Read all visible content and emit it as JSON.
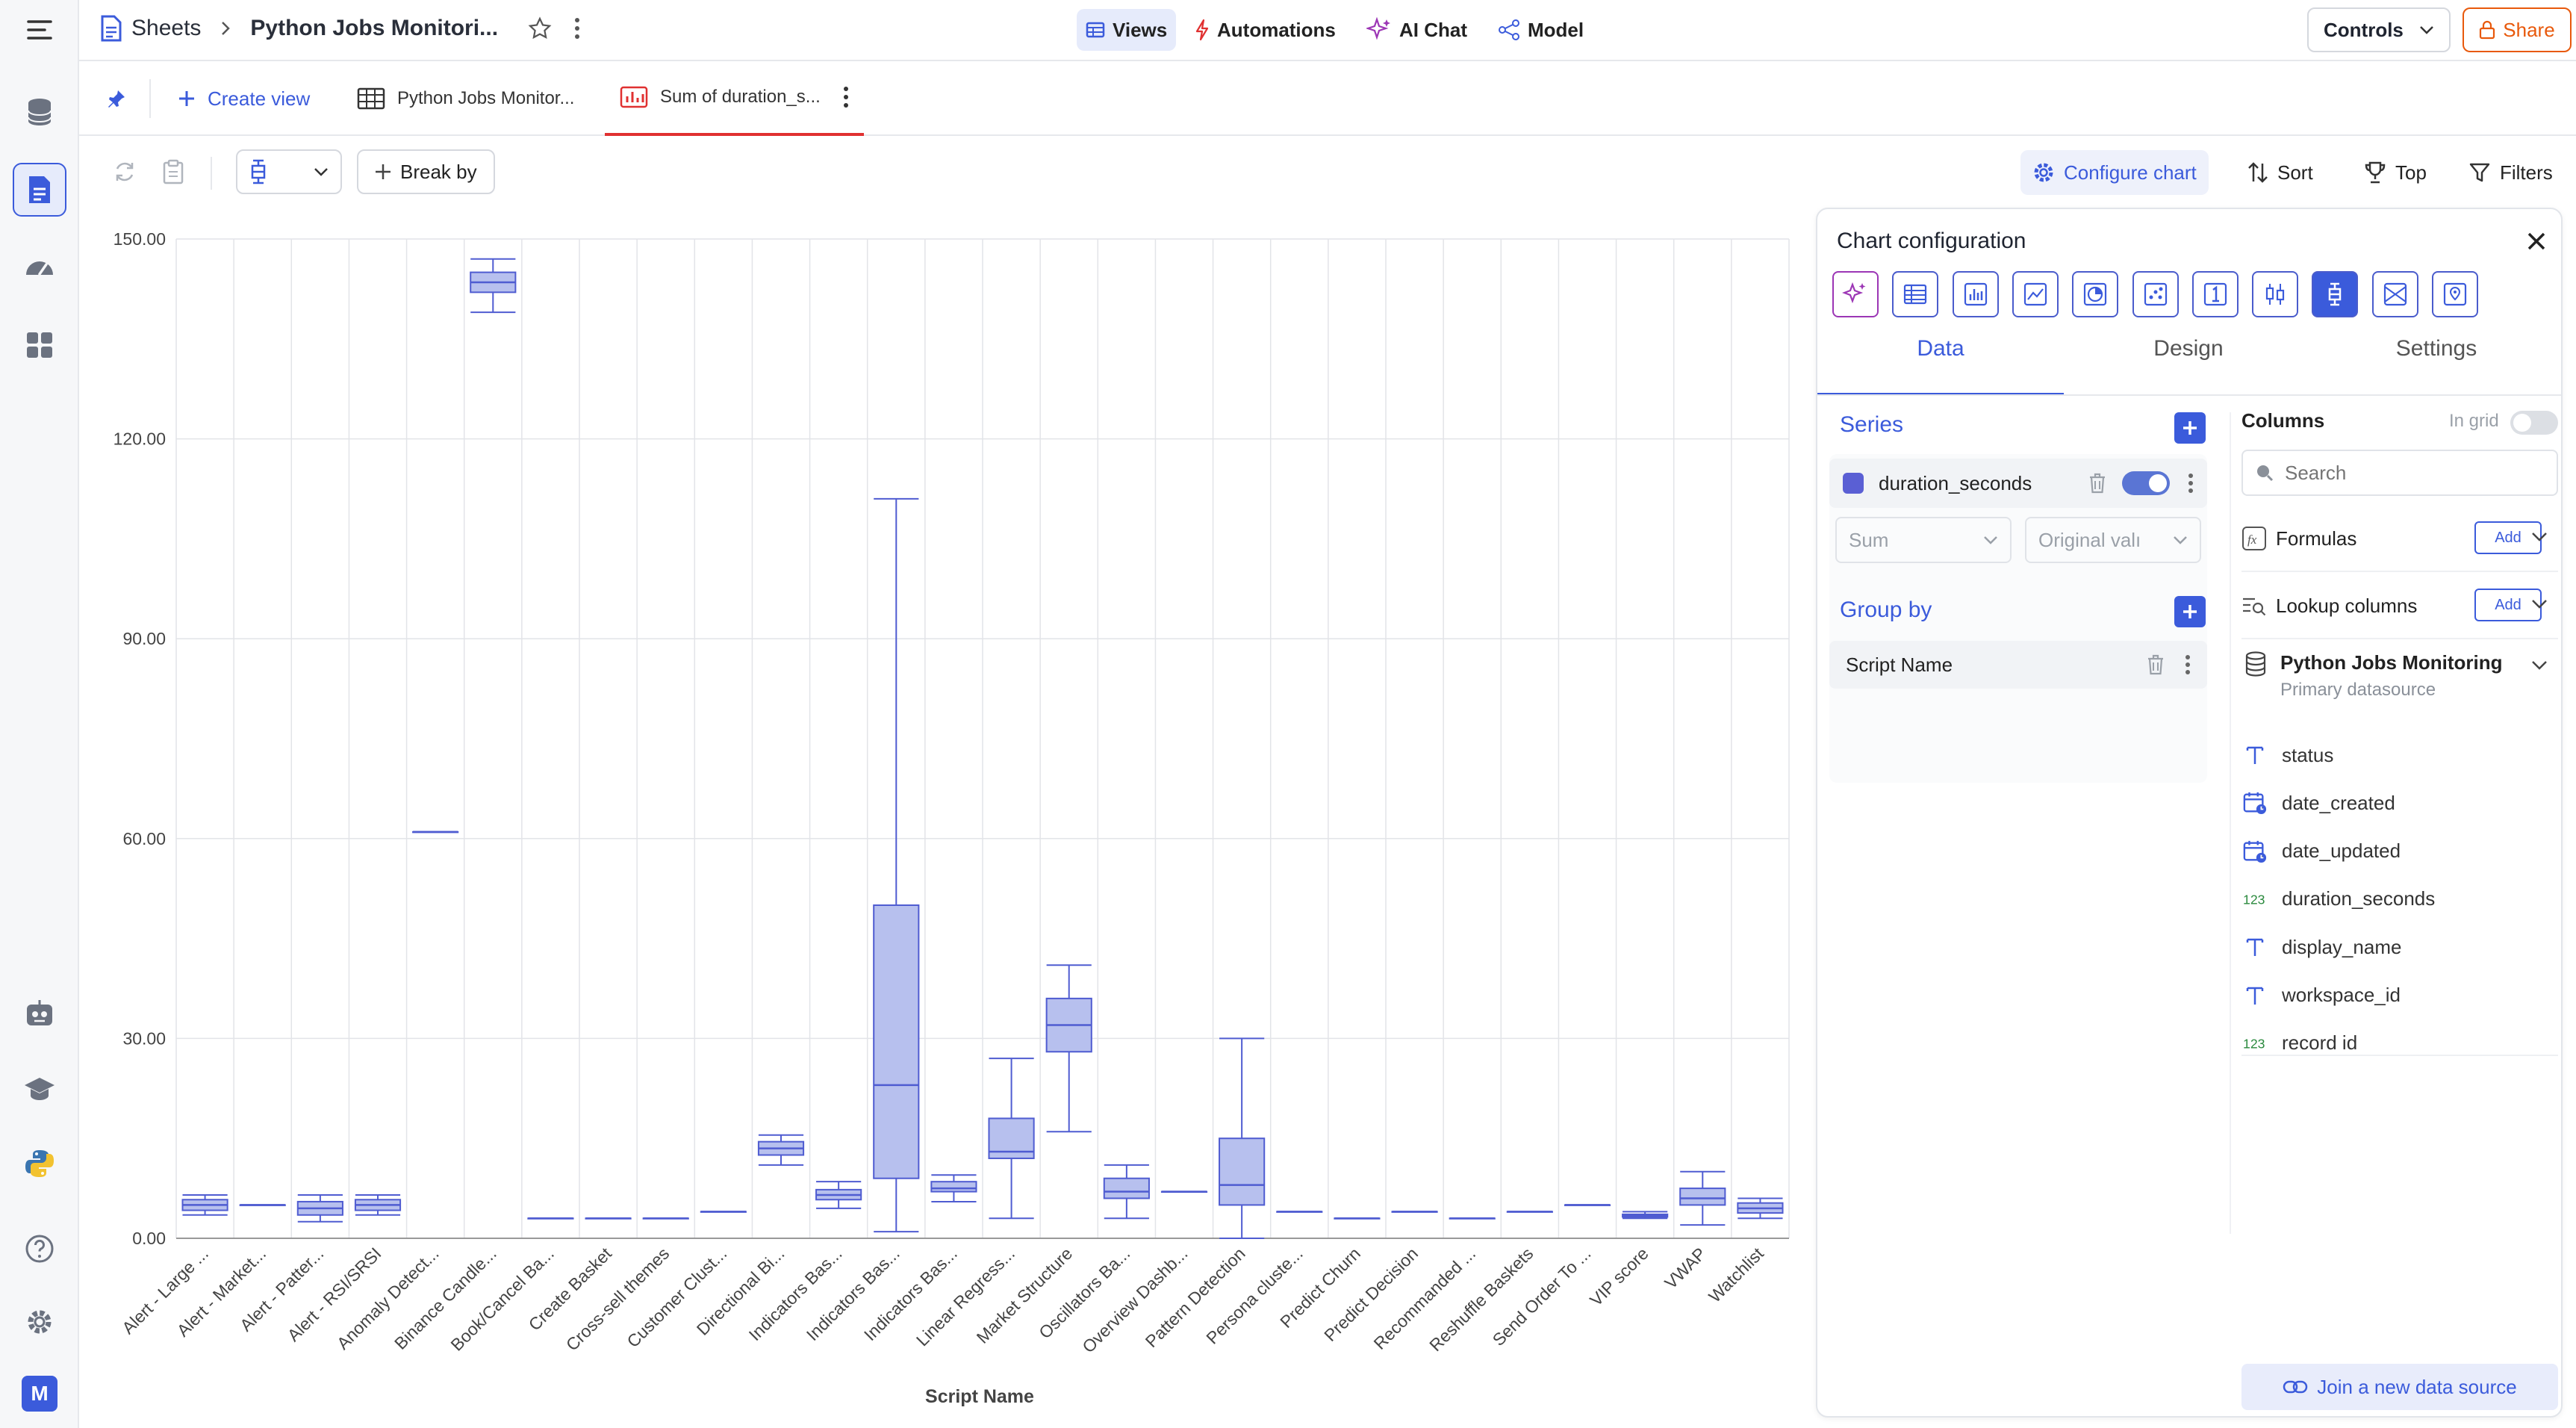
{
  "header": {
    "breadcrumb_root": "Sheets",
    "sheet_title": "Python Jobs Monitori...",
    "nav": [
      "Views",
      "Automations",
      "AI Chat",
      "Model"
    ],
    "controls_label": "Controls",
    "share_label": "Share"
  },
  "rail": {
    "avatar_letter": "M"
  },
  "tabs": {
    "create_view": "Create view",
    "items": [
      "Python Jobs Monitor...",
      "Sum of duration_s..."
    ]
  },
  "toolbar": {
    "break_by": "Break by",
    "configure_chart": "Configure chart",
    "sort": "Sort",
    "top": "Top",
    "filters": "Filters"
  },
  "chart_data": {
    "type": "boxplot",
    "xlabel": "Script Name",
    "ylabel": "",
    "ylim": [
      0,
      150
    ],
    "yticks": [
      "0.00",
      "30.00",
      "60.00",
      "90.00",
      "120.00",
      "150.00"
    ],
    "color": "#4f5cd1",
    "fill": "#b7c0ee",
    "categories": [
      "Alert - Large ...",
      "Alert - Market...",
      "Alert - Patter...",
      "Alert - RSI/SRSI",
      "Anomaly Detect...",
      "Binance Candle...",
      "Book/Cancel Ba...",
      "Create Basket",
      "Cross-sell themes",
      "Customer Clust...",
      "Directional Bi...",
      "Indicators Bas...",
      "Indicators Bas...",
      "Indicators Bas...",
      "Linear Regress...",
      "Market Structure",
      "Oscillators Ba...",
      "Overview Dashb...",
      "Pattern Detection",
      "Persona cluste...",
      "Predict Churn",
      "Predict Decision",
      "Recommanded ...",
      "Reshuffle Baskets",
      "Send Order To ...",
      "VIP score",
      "VWAP",
      "Watchlist"
    ],
    "boxes": [
      [
        3.5,
        4.2,
        5,
        5.8,
        6.5
      ],
      [
        5,
        5,
        5,
        5,
        5
      ],
      [
        2.5,
        3.5,
        4.5,
        5.5,
        6.5
      ],
      [
        3.5,
        4.2,
        5,
        5.8,
        6.5
      ],
      [
        61,
        61,
        61,
        61,
        61
      ],
      [
        139,
        142,
        143.5,
        145,
        147
      ],
      [
        3,
        3,
        3,
        3,
        3
      ],
      [
        3,
        3,
        3,
        3,
        3
      ],
      [
        3,
        3,
        3,
        3,
        3
      ],
      [
        4,
        4,
        4,
        4,
        4
      ],
      [
        11,
        12.5,
        13.5,
        14.5,
        15.5
      ],
      [
        4.5,
        5.8,
        6.5,
        7.3,
        8.5
      ],
      [
        1,
        9,
        23,
        50,
        111
      ],
      [
        5.5,
        7,
        7.5,
        8.5,
        9.5
      ],
      [
        3,
        12,
        13,
        18,
        27
      ],
      [
        16,
        28,
        32,
        36,
        41
      ],
      [
        3,
        6,
        7,
        9,
        11
      ],
      [
        7,
        7,
        7,
        7,
        7
      ],
      [
        0,
        5,
        8,
        15,
        30
      ],
      [
        4,
        4,
        4,
        4,
        4
      ],
      [
        3,
        3,
        3,
        3,
        3
      ],
      [
        4,
        4,
        4,
        4,
        4
      ],
      [
        3,
        3,
        3,
        3,
        3
      ],
      [
        4,
        4,
        4,
        4,
        4
      ],
      [
        5,
        5,
        5,
        5,
        5
      ],
      [
        3,
        3.2,
        3.4,
        3.6,
        4
      ],
      [
        2,
        5,
        6,
        7.5,
        10
      ],
      [
        3,
        3.8,
        4.5,
        5.3,
        6
      ]
    ]
  },
  "panel": {
    "title": "Chart configuration",
    "chart_types": [
      "ai-sparkle-icon",
      "table-chart-icon",
      "bar-chart-icon",
      "line-chart-icon",
      "pie-chart-icon",
      "scatter-chart-icon",
      "number-card-icon",
      "candlestick-chart-icon",
      "boxplot-chart-icon",
      "funnel-chart-icon",
      "map-chart-icon"
    ],
    "tabs": [
      "Data",
      "Design",
      "Settings"
    ],
    "series_label": "Series",
    "series_field": "duration_seconds",
    "series_color": "#5a5fd4",
    "aggregation": "Sum",
    "value_mode": "Original valı",
    "group_by_label": "Group by",
    "group_by_field": "Script Name",
    "columns_label": "Columns",
    "in_grid_label": "In grid",
    "search_placeholder": "Search",
    "formulas_label": "Formulas",
    "lookup_label": "Lookup columns",
    "add_label": "Add",
    "datasource_name": "Python Jobs Monitoring",
    "datasource_sub": "Primary datasource",
    "columns": [
      {
        "name": "status",
        "type": "text"
      },
      {
        "name": "date_created",
        "type": "date"
      },
      {
        "name": "date_updated",
        "type": "date"
      },
      {
        "name": "duration_seconds",
        "type": "number"
      },
      {
        "name": "display_name",
        "type": "text"
      },
      {
        "name": "workspace_id",
        "type": "text"
      },
      {
        "name": "record id",
        "type": "number"
      }
    ],
    "join_label": "Join a new data source"
  }
}
